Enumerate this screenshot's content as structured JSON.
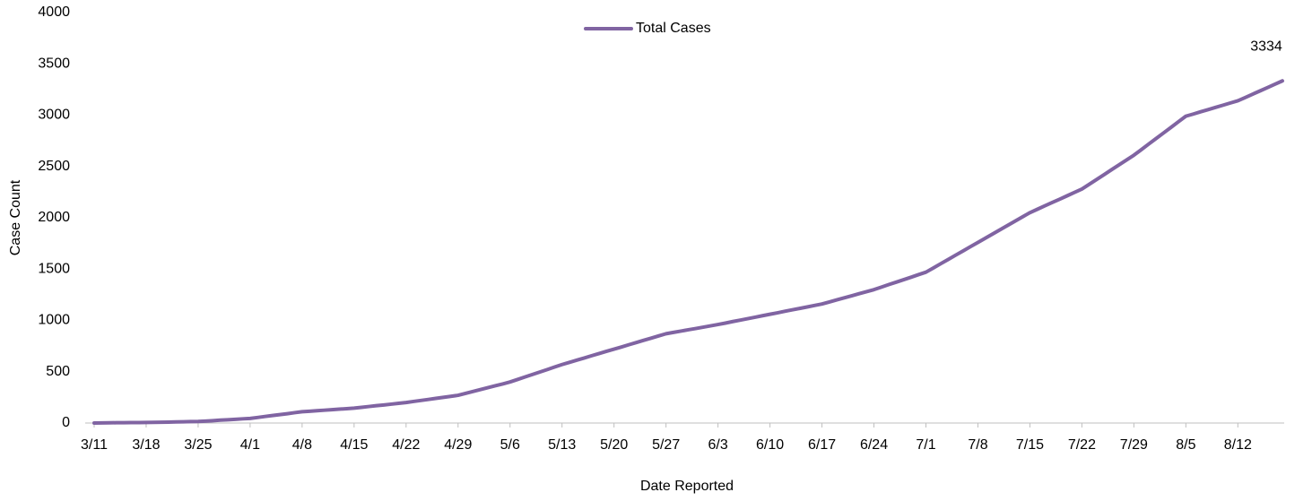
{
  "chart_data": {
    "type": "line",
    "xlabel": "Date Reported",
    "ylabel": "Case Count",
    "legend": "top",
    "grid": false,
    "categories": [
      "3/11",
      null,
      null,
      null,
      null,
      null,
      null,
      "3/18",
      null,
      null,
      null,
      null,
      null,
      null,
      "3/25",
      null,
      null,
      null,
      null,
      null,
      null,
      "4/1",
      null,
      null,
      null,
      null,
      null,
      null,
      "4/8",
      null,
      null,
      null,
      null,
      null,
      null,
      "4/15",
      null,
      null,
      null,
      null,
      null,
      null,
      "4/22",
      null,
      null,
      null,
      null,
      null,
      null,
      "4/29",
      null,
      null,
      null,
      null,
      null,
      null,
      "5/6",
      null,
      null,
      null,
      null,
      null,
      null,
      "5/13",
      null,
      null,
      null,
      null,
      null,
      null,
      "5/20",
      null,
      null,
      null,
      null,
      null,
      null,
      "5/27",
      null,
      null,
      null,
      null,
      null,
      null,
      "6/3",
      null,
      null,
      null,
      null,
      null,
      null,
      "6/10",
      null,
      null,
      null,
      null,
      null,
      null,
      "6/17",
      null,
      null,
      null,
      null,
      null,
      null,
      "6/24",
      null,
      null,
      null,
      null,
      null,
      null,
      "7/1",
      null,
      null,
      null,
      null,
      null,
      null,
      "7/8",
      null,
      null,
      null,
      null,
      null,
      null,
      "7/15",
      null,
      null,
      null,
      null,
      null,
      null,
      "7/22",
      null,
      null,
      null,
      null,
      null,
      null,
      "7/29",
      null,
      null,
      null,
      null,
      null,
      null,
      "8/5",
      null,
      null,
      null,
      null,
      null,
      null,
      "8/12",
      null,
      null,
      null,
      null,
      null,
      null
    ],
    "series": [
      {
        "name": "Total Cases",
        "color": "#8064a2",
        "values": [
          0,
          1,
          2,
          3,
          3,
          4,
          4,
          5,
          6,
          8,
          9,
          11,
          12,
          14,
          15,
          19,
          23,
          28,
          32,
          36,
          41,
          45,
          54,
          64,
          73,
          82,
          91,
          101,
          110,
          115,
          120,
          125,
          130,
          135,
          140,
          145,
          153,
          161,
          169,
          176,
          184,
          192,
          200,
          210,
          220,
          230,
          240,
          250,
          260,
          270,
          289,
          307,
          326,
          344,
          363,
          381,
          400,
          424,
          449,
          473,
          497,
          521,
          546,
          570,
          591,
          613,
          634,
          656,
          677,
          699,
          720,
          741,
          763,
          784,
          806,
          827,
          849,
          870,
          883,
          896,
          909,
          921,
          934,
          947,
          960,
          974,
          989,
          1003,
          1017,
          1031,
          1046,
          1060,
          1074,
          1089,
          1103,
          1117,
          1131,
          1146,
          1160,
          1180,
          1200,
          1220,
          1240,
          1260,
          1280,
          1300,
          1324,
          1349,
          1373,
          1397,
          1421,
          1446,
          1470,
          1511,
          1553,
          1594,
          1636,
          1677,
          1719,
          1760,
          1801,
          1843,
          1884,
          1926,
          1967,
          2009,
          2050,
          2083,
          2116,
          2149,
          2181,
          2214,
          2247,
          2280,
          2327,
          2374,
          2421,
          2469,
          2516,
          2563,
          2610,
          2664,
          2719,
          2773,
          2827,
          2881,
          2936,
          2990,
          3011,
          3033,
          3054,
          3076,
          3097,
          3119,
          3140,
          3172,
          3205,
          3237,
          3269,
          3302,
          3334
        ]
      }
    ],
    "ylim": [
      0,
      4000
    ],
    "yticks": [
      0,
      500,
      1000,
      1500,
      2000,
      2500,
      3000,
      3500,
      4000
    ]
  }
}
